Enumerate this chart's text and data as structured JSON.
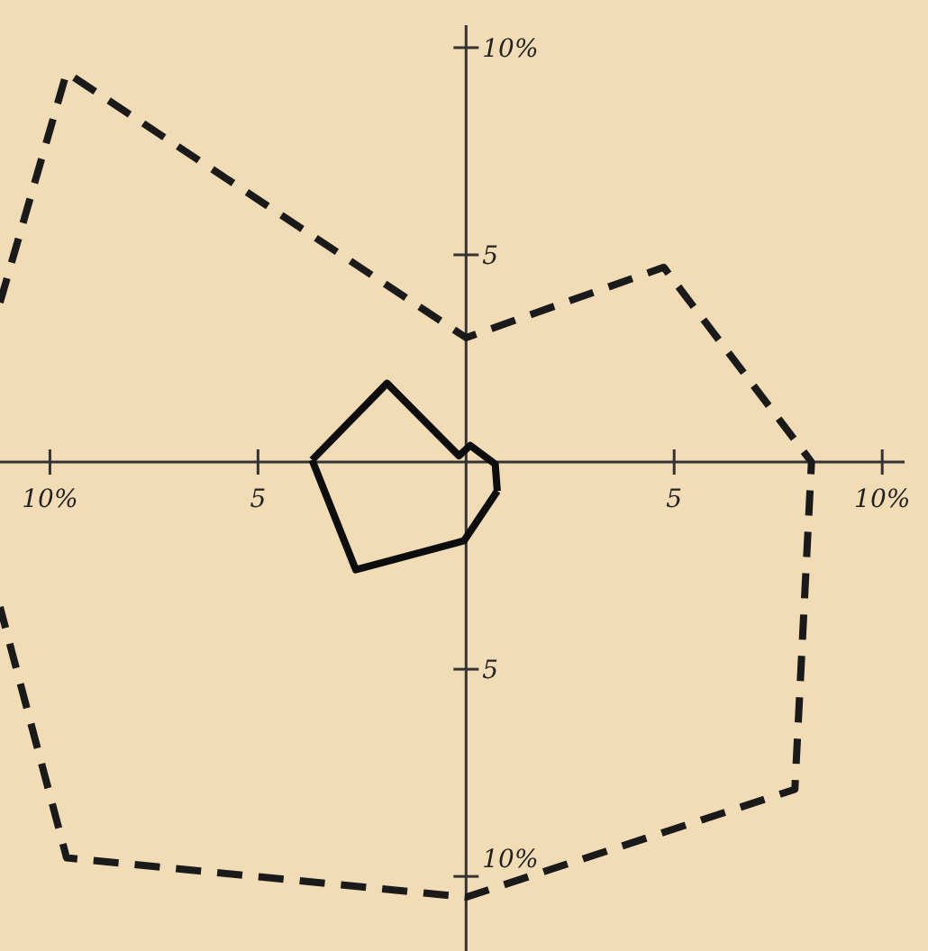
{
  "chart_data": {
    "type": "line",
    "xlim": [
      -11.2,
      11.1
    ],
    "ylim": [
      -11.8,
      11.15
    ],
    "xticks": [
      {
        "value": -10,
        "label": "10%"
      },
      {
        "value": -5,
        "label": "5"
      },
      {
        "value": 5,
        "label": "5"
      },
      {
        "value": 10,
        "label": "10%"
      }
    ],
    "yticks": [
      {
        "value": -10,
        "label": "10%"
      },
      {
        "value": -5,
        "label": "5"
      },
      {
        "value": 5,
        "label": "5"
      },
      {
        "value": 10,
        "label": "10%"
      }
    ],
    "grid": false,
    "marker": "none",
    "series": [
      {
        "color": "#1a1a1a",
        "line_style": "dashed",
        "x": [
          -11.2,
          -9.6,
          0,
          4.75,
          8.3,
          7.9,
          0,
          -9.6,
          -11.2
        ],
        "values": [
          3.85,
          9.4,
          3.0,
          4.7,
          0,
          -7.9,
          -10.5,
          -9.55,
          -3.5
        ]
      },
      {
        "color": "#0d0d0d",
        "line_style": "solid",
        "x": [
          -3.7,
          -1.9,
          -0.17,
          0.1,
          0.7,
          0.75
        ],
        "values": [
          0.05,
          1.9,
          0.15,
          0.4,
          -0.05,
          -0.7
        ]
      },
      {
        "color": "#0d0d0d",
        "line_style": "solid",
        "x": [
          -3.7,
          -2.65,
          -0.05,
          0.75
        ],
        "values": [
          0.05,
          -2.6,
          -1.9,
          -0.7
        ]
      }
    ]
  }
}
